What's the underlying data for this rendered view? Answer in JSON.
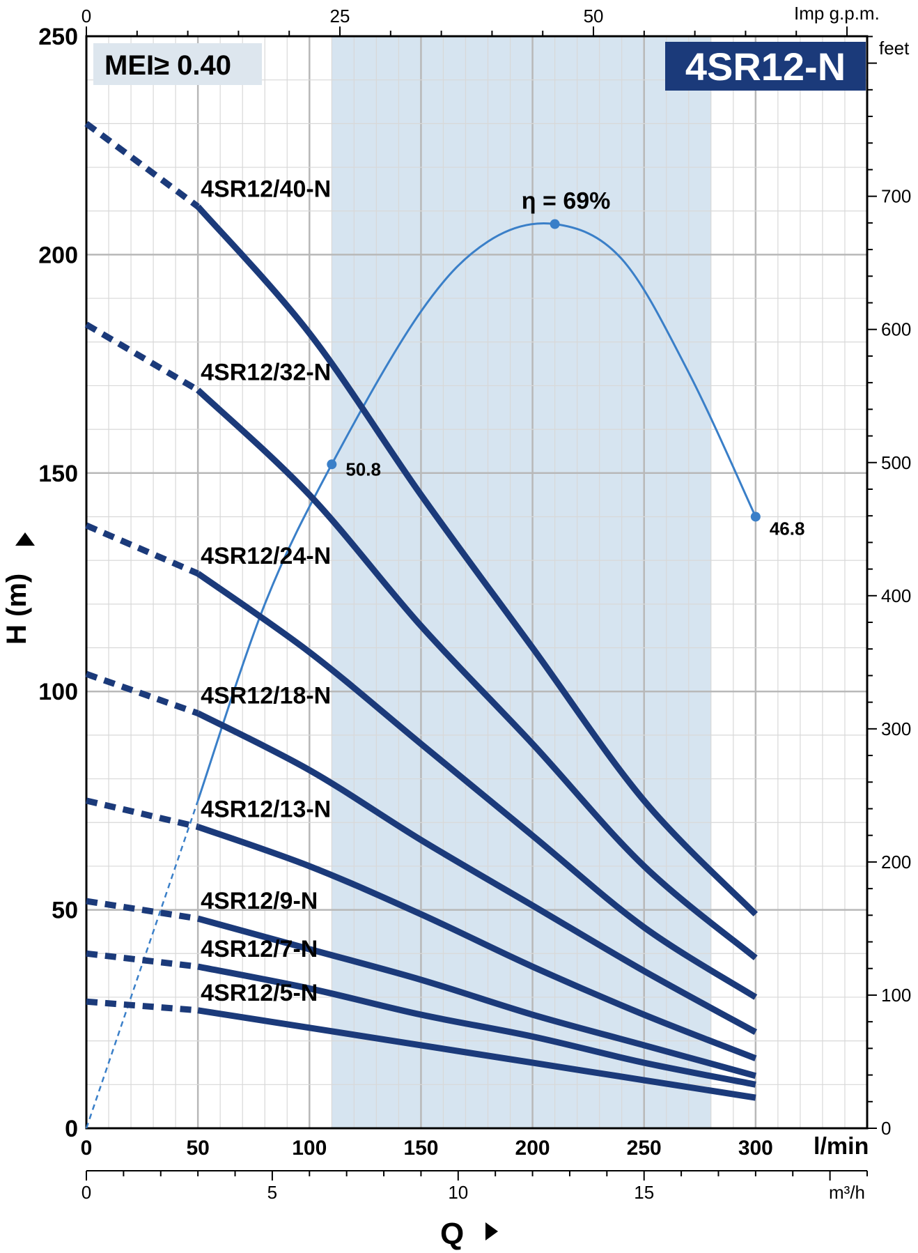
{
  "chart_data": {
    "type": "line",
    "title": "4SR12-N",
    "badge": "MEI≥ 0.40",
    "ylabel": "H (m)",
    "xlabel": "Q",
    "x_unit": "l/min",
    "x_top_unit": "Imp g.p.m.",
    "y_right_unit": "feet",
    "x2_unit": "m³/h",
    "xlim": [
      0,
      350
    ],
    "ylim": [
      0,
      250
    ],
    "x_ticks": [
      0,
      50,
      100,
      150,
      200,
      250,
      300
    ],
    "y_ticks": [
      0,
      50,
      100,
      150,
      200,
      250
    ],
    "top_ticks": [
      0,
      25,
      50
    ],
    "right_ticks": [
      0,
      100,
      200,
      300,
      400,
      500,
      600,
      700
    ],
    "m3h_ticks": [
      0,
      5,
      10,
      15
    ],
    "shaded_range": [
      110,
      280
    ],
    "series": [
      {
        "name": "4SR12/40-N",
        "dashed_x": [
          0,
          50
        ],
        "dashed_y": [
          230,
          211
        ],
        "x": [
          50,
          100,
          150,
          200,
          250,
          300
        ],
        "y": [
          211,
          182,
          145,
          110,
          75,
          49
        ]
      },
      {
        "name": "4SR12/32-N",
        "dashed_x": [
          0,
          50
        ],
        "dashed_y": [
          184,
          169
        ],
        "x": [
          50,
          100,
          150,
          200,
          250,
          300
        ],
        "y": [
          169,
          145,
          115,
          88,
          60,
          39
        ]
      },
      {
        "name": "4SR12/24-N",
        "dashed_x": [
          0,
          50
        ],
        "dashed_y": [
          138,
          127
        ],
        "x": [
          50,
          100,
          150,
          200,
          250,
          300
        ],
        "y": [
          127,
          109,
          88,
          67,
          46,
          30
        ]
      },
      {
        "name": "4SR12/18-N",
        "dashed_x": [
          0,
          50
        ],
        "dashed_y": [
          104,
          95
        ],
        "x": [
          50,
          100,
          150,
          200,
          250,
          300
        ],
        "y": [
          95,
          82,
          66,
          51,
          36,
          22
        ]
      },
      {
        "name": "4SR12/13-N",
        "dashed_x": [
          0,
          50
        ],
        "dashed_y": [
          75,
          69
        ],
        "x": [
          50,
          100,
          150,
          200,
          250,
          300
        ],
        "y": [
          69,
          60,
          49,
          37,
          26,
          16
        ]
      },
      {
        "name": "4SR12/9-N",
        "dashed_x": [
          0,
          50
        ],
        "dashed_y": [
          52,
          48
        ],
        "x": [
          50,
          100,
          150,
          200,
          250,
          300
        ],
        "y": [
          48,
          41,
          34,
          26,
          19,
          12
        ]
      },
      {
        "name": "4SR12/7-N",
        "dashed_x": [
          0,
          50
        ],
        "dashed_y": [
          40,
          37
        ],
        "x": [
          50,
          100,
          150,
          200,
          250,
          300
        ],
        "y": [
          37,
          32,
          26,
          21,
          15,
          10
        ]
      },
      {
        "name": "4SR12/5-N",
        "dashed_x": [
          0,
          50
        ],
        "dashed_y": [
          29,
          27
        ],
        "x": [
          50,
          100,
          150,
          200,
          250,
          300
        ],
        "y": [
          27,
          23,
          19,
          15,
          11,
          7
        ]
      }
    ],
    "efficiency": {
      "label": "η = 69%",
      "dashed_x": [
        0,
        50
      ],
      "dashed_y": [
        0,
        75
      ],
      "x": [
        50,
        80,
        110,
        150,
        180,
        210,
        240,
        270,
        300
      ],
      "y": [
        75,
        120,
        152,
        187,
        203,
        207,
        199,
        173,
        140
      ],
      "points": [
        {
          "x": 110,
          "y": 152,
          "label": "50.8"
        },
        {
          "x": 210,
          "y": 207,
          "label": ""
        },
        {
          "x": 300,
          "y": 140,
          "label": "46.8"
        }
      ]
    }
  },
  "colors": {
    "curve": "#1b3a7a",
    "efficiency": "#3a7fc8",
    "shade": "#d6e4f0",
    "grid_major": "#b8b8b8",
    "grid_minor": "#d8d8d8",
    "badge_bg": "#dde6ee",
    "title_bg": "#1b3a7a",
    "title_fg": "#ffffff"
  }
}
